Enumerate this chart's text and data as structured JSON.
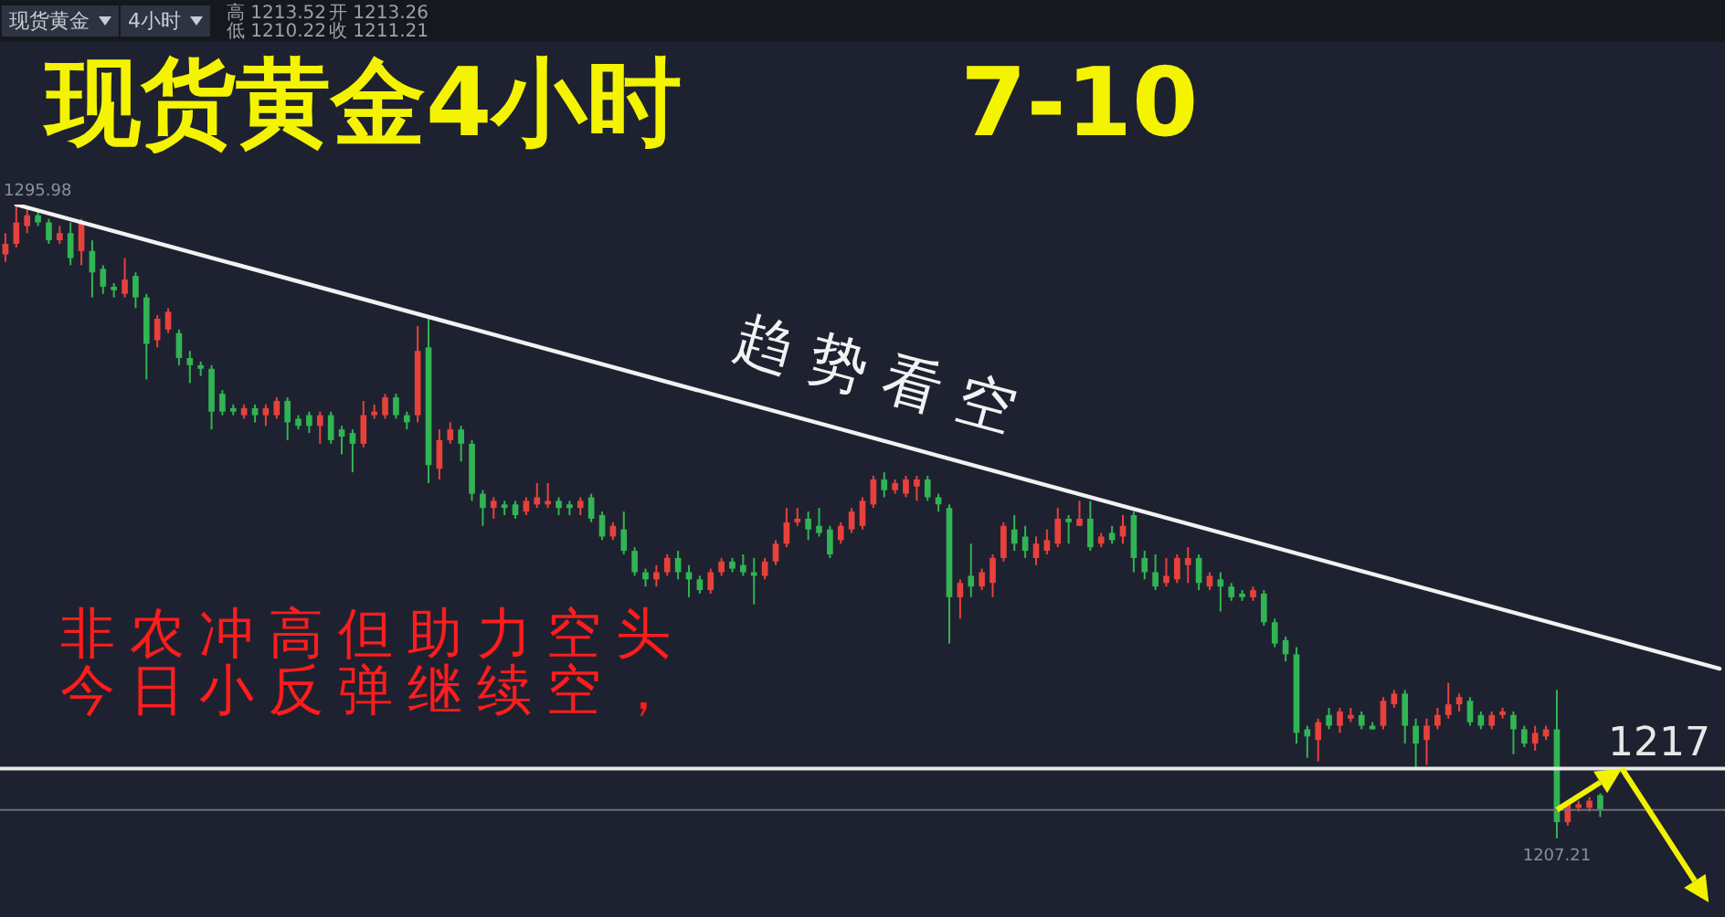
{
  "chart_data": {
    "type": "candlestick",
    "title": "现货黄金4小时    7-10",
    "tick_labels": false,
    "categories": [
      null,
      null,
      null,
      null,
      null,
      null,
      null,
      null,
      null,
      null,
      null,
      null,
      null,
      null,
      null,
      null,
      null,
      null,
      null,
      null,
      null,
      null,
      null,
      null,
      null,
      null,
      null,
      null,
      null,
      null,
      null,
      null,
      null,
      null,
      null,
      null,
      null,
      null,
      null,
      null,
      null,
      null,
      null,
      null,
      null,
      null,
      null,
      null,
      null,
      null,
      null,
      null,
      null,
      null,
      null,
      null,
      null,
      null,
      null,
      null,
      null,
      null,
      null,
      null,
      null,
      null,
      null,
      null,
      null,
      null,
      null,
      null,
      null,
      null,
      null,
      null,
      null,
      null,
      null,
      null,
      null,
      null,
      null,
      null,
      null,
      null,
      null,
      null,
      null,
      null,
      null,
      null,
      null,
      null,
      null,
      null,
      null,
      null,
      null,
      null,
      null,
      null,
      null,
      null,
      null,
      null,
      null,
      null,
      null,
      null,
      null,
      null,
      null,
      null,
      null,
      null,
      null,
      null,
      null,
      null,
      null,
      null,
      null,
      null,
      null,
      null,
      null,
      null,
      null,
      null,
      null,
      null,
      null,
      null,
      null,
      null,
      null,
      null,
      null,
      null,
      null,
      null,
      null,
      null,
      null,
      null,
      null,
      null,
      null,
      null,
      null,
      null,
      null,
      null,
      null,
      null,
      null,
      null,
      null
    ],
    "ohlc": [
      [
        1289,
        1292,
        1288,
        1290.5
      ],
      [
        1290.5,
        1295.98,
        1290,
        1293.5
      ],
      [
        1293,
        1295.5,
        1292,
        1294.5
      ],
      [
        1294.5,
        1295,
        1293,
        1293.5
      ],
      [
        1293.5,
        1294,
        1290.5,
        1291
      ],
      [
        1291,
        1293,
        1290.5,
        1292
      ],
      [
        1292,
        1293.5,
        1287.5,
        1288.5
      ],
      [
        1289.5,
        1294,
        1287.5,
        1293.5
      ],
      [
        1289.5,
        1291,
        1283,
        1286.5
      ],
      [
        1287,
        1287.5,
        1283.5,
        1284.5
      ],
      [
        1284.5,
        1285,
        1283,
        1284
      ],
      [
        1283.5,
        1288.5,
        1283,
        1285.5
      ],
      [
        1286,
        1286.5,
        1281.5,
        1283
      ],
      [
        1283,
        1283.5,
        1271.5,
        1276.5
      ],
      [
        1277,
        1280.5,
        1276,
        1280
      ],
      [
        1278.5,
        1281.5,
        1278,
        1281
      ],
      [
        1278,
        1278.5,
        1273.5,
        1274.5
      ],
      [
        1274.5,
        1275.5,
        1271,
        1273.5
      ],
      [
        1273.5,
        1274,
        1272,
        1273
      ],
      [
        1273,
        1273.5,
        1264.5,
        1267
      ],
      [
        1269.5,
        1270,
        1266.5,
        1267
      ],
      [
        1267.5,
        1268,
        1266.5,
        1267
      ],
      [
        1266.5,
        1268,
        1266,
        1267.5
      ],
      [
        1267.5,
        1268,
        1265.5,
        1266.5
      ],
      [
        1266.5,
        1268,
        1265,
        1267.5
      ],
      [
        1266.5,
        1269,
        1266,
        1268.5
      ],
      [
        1268.5,
        1269,
        1263,
        1265.5
      ],
      [
        1266,
        1266.5,
        1264.5,
        1265
      ],
      [
        1266.5,
        1267,
        1264,
        1265
      ],
      [
        1265,
        1267,
        1262.5,
        1266.5
      ],
      [
        1266.5,
        1267,
        1262.5,
        1263
      ],
      [
        1264.5,
        1265,
        1261,
        1263.5
      ],
      [
        1264,
        1264.5,
        1258.5,
        1262.5
      ],
      [
        1262.5,
        1268.5,
        1262,
        1266.5
      ],
      [
        1266.5,
        1268,
        1266,
        1267
      ],
      [
        1266.5,
        1269.5,
        1266,
        1269
      ],
      [
        1269,
        1269.5,
        1266,
        1266.5
      ],
      [
        1266.5,
        1267,
        1264.5,
        1265.5
      ],
      [
        1266.5,
        1279,
        1265.5,
        1275.5
      ],
      [
        1276,
        1280.5,
        1257,
        1259.5
      ],
      [
        1259,
        1264.5,
        1257.5,
        1263
      ],
      [
        1263,
        1265.5,
        1262.5,
        1264.5
      ],
      [
        1264.5,
        1265,
        1260,
        1262.5
      ],
      [
        1262.5,
        1263,
        1254.5,
        1255.5
      ],
      [
        1255.5,
        1256,
        1251,
        1253.5
      ],
      [
        1253.5,
        1255,
        1252,
        1254.5
      ],
      [
        1254,
        1254.5,
        1252.5,
        1253.5
      ],
      [
        1254,
        1254.5,
        1252,
        1252.5
      ],
      [
        1253,
        1255,
        1252.5,
        1254.5
      ],
      [
        1254,
        1257,
        1253.5,
        1255
      ],
      [
        1254,
        1257,
        1253.5,
        1254.5
      ],
      [
        1254.5,
        1255,
        1252.5,
        1253.5
      ],
      [
        1254,
        1254.5,
        1252.5,
        1253.5
      ],
      [
        1253.5,
        1255,
        1252.5,
        1254.5
      ],
      [
        1255,
        1255.5,
        1251.5,
        1252
      ],
      [
        1252.5,
        1253,
        1249,
        1249.5
      ],
      [
        1249.5,
        1251.5,
        1249,
        1251
      ],
      [
        1250.5,
        1253,
        1247,
        1247.5
      ],
      [
        1247.5,
        1248,
        1244,
        1244.5
      ],
      [
        1244.5,
        1245,
        1242.5,
        1243.5
      ],
      [
        1243.5,
        1245.5,
        1242.5,
        1244.5
      ],
      [
        1244.5,
        1247,
        1244,
        1246.5
      ],
      [
        1246.5,
        1247.5,
        1243.5,
        1244.5
      ],
      [
        1244.5,
        1245.5,
        1241,
        1243.5
      ],
      [
        1243.5,
        1244,
        1241.5,
        1242
      ],
      [
        1242,
        1245,
        1241.5,
        1244.5
      ],
      [
        1244.5,
        1246.5,
        1244,
        1246
      ],
      [
        1246,
        1246.5,
        1244.5,
        1245
      ],
      [
        1245.5,
        1247,
        1244,
        1244.5
      ],
      [
        1244.5,
        1246.5,
        1240,
        1244
      ],
      [
        1244,
        1246.5,
        1243.5,
        1246
      ],
      [
        1246,
        1249,
        1245.5,
        1248.5
      ],
      [
        1248.5,
        1253.5,
        1248,
        1251.5
      ],
      [
        1251.5,
        1253.5,
        1251,
        1252
      ],
      [
        1252,
        1253,
        1249,
        1250.5
      ],
      [
        1251,
        1253.5,
        1249.5,
        1250
      ],
      [
        1250.5,
        1251,
        1246.5,
        1247
      ],
      [
        1249,
        1251.5,
        1248.5,
        1251
      ],
      [
        1250.5,
        1253.5,
        1250,
        1253
      ],
      [
        1251,
        1255,
        1250.5,
        1254.5
      ],
      [
        1254,
        1258,
        1253.5,
        1257.5
      ],
      [
        1257.5,
        1258.5,
        1255,
        1256
      ],
      [
        1256,
        1257.5,
        1255.5,
        1257
      ],
      [
        1255.5,
        1258,
        1255,
        1257.5
      ],
      [
        1256.5,
        1258,
        1254.5,
        1257.5
      ],
      [
        1257.5,
        1258,
        1254.5,
        1255
      ],
      [
        1255,
        1255.5,
        1253,
        1254
      ],
      [
        1253.5,
        1254,
        1234.5,
        1241
      ],
      [
        1241,
        1243.5,
        1238,
        1243
      ],
      [
        1244,
        1248.5,
        1241,
        1242.5
      ],
      [
        1242.5,
        1245,
        1242,
        1244.5
      ],
      [
        1243,
        1247,
        1241,
        1246.5
      ],
      [
        1246.5,
        1251.5,
        1246,
        1251
      ],
      [
        1250.5,
        1252.5,
        1247.5,
        1248.5
      ],
      [
        1249.5,
        1251,
        1246.5,
        1247.5
      ],
      [
        1246.5,
        1249.5,
        1245.5,
        1248.5
      ],
      [
        1247.5,
        1250.5,
        1247,
        1249
      ],
      [
        1248.5,
        1253.5,
        1248,
        1252
      ],
      [
        1252,
        1252.5,
        1248.5,
        1251.5
      ],
      [
        1251,
        1254.5,
        1251,
        1252
      ],
      [
        1252,
        1254.5,
        1247.5,
        1248
      ],
      [
        1248.5,
        1250,
        1248,
        1249.5
      ],
      [
        1250,
        1251,
        1248.5,
        1249
      ],
      [
        1249.5,
        1252.5,
        1248.5,
        1251
      ],
      [
        1252.5,
        1253,
        1244.5,
        1246.5
      ],
      [
        1246.5,
        1247.5,
        1243.5,
        1244.5
      ],
      [
        1244.5,
        1247,
        1242,
        1242.5
      ],
      [
        1243,
        1246.5,
        1242.5,
        1244
      ],
      [
        1243.5,
        1247,
        1243,
        1246.5
      ],
      [
        1245.5,
        1248,
        1243,
        1246.5
      ],
      [
        1246.5,
        1247,
        1242,
        1243
      ],
      [
        1242.5,
        1244.5,
        1242,
        1244
      ],
      [
        1243.5,
        1244.5,
        1239,
        1242.5
      ],
      [
        1242.5,
        1243,
        1240.5,
        1241
      ],
      [
        1241.5,
        1242,
        1240.5,
        1241
      ],
      [
        1241,
        1242.5,
        1240.5,
        1242
      ],
      [
        1241.5,
        1242,
        1237,
        1237.5
      ],
      [
        1237.5,
        1238,
        1234,
        1234.5
      ],
      [
        1235,
        1235.5,
        1232,
        1233
      ],
      [
        1233,
        1234,
        1220.5,
        1222
      ],
      [
        1222.5,
        1223,
        1218.5,
        1221.5
      ],
      [
        1221,
        1224,
        1218,
        1223.5
      ],
      [
        1224.5,
        1225.5,
        1222.5,
        1223
      ],
      [
        1223,
        1225.5,
        1222,
        1225
      ],
      [
        1224,
        1225.5,
        1223.5,
        1224.5
      ],
      [
        1224.5,
        1225,
        1222.5,
        1223
      ],
      [
        1223,
        1223.5,
        1222.5,
        1222.5
      ],
      [
        1223,
        1227,
        1222.5,
        1226.5
      ],
      [
        1226,
        1228,
        1225.5,
        1227.5
      ],
      [
        1227.5,
        1228,
        1220.5,
        1223
      ],
      [
        1223,
        1224,
        1217,
        1220.5
      ],
      [
        1221,
        1224,
        1217.5,
        1223
      ],
      [
        1223,
        1225.5,
        1222.5,
        1224.5
      ],
      [
        1224.5,
        1229,
        1224,
        1226
      ],
      [
        1226,
        1227.5,
        1225,
        1227
      ],
      [
        1226.5,
        1227,
        1223,
        1223.5
      ],
      [
        1224.5,
        1225,
        1222.5,
        1223
      ],
      [
        1223,
        1225,
        1222.5,
        1224.5
      ],
      [
        1224.5,
        1225.5,
        1224,
        1225
      ],
      [
        1224.5,
        1225,
        1219,
        1222.5
      ],
      [
        1222.5,
        1223,
        1220,
        1220.5
      ],
      [
        1220.5,
        1223,
        1219.5,
        1222
      ],
      [
        1221.5,
        1223,
        1221,
        1222.5
      ],
      [
        1222.5,
        1228,
        1207.21,
        1209.5
      ],
      [
        1209.5,
        1212.5,
        1209,
        1212
      ],
      [
        1211.5,
        1212.5,
        1211,
        1212
      ],
      [
        1211.5,
        1213,
        1211,
        1212.5
      ],
      [
        1213.26,
        1213.52,
        1210.22,
        1211.21
      ],
      null,
      null,
      null,
      null,
      null,
      null,
      null,
      null,
      null,
      null,
      null
    ],
    "colors": [
      "#e8413c",
      "#e8413c",
      "#e8413c",
      "#31b453",
      "#31b453",
      "#e8413c",
      "#31b453",
      "#e8413c",
      "#31b453",
      "#31b453",
      "#31b453",
      "#e8413c",
      "#31b453",
      "#31b453",
      "#e8413c",
      "#e8413c",
      "#31b453",
      "#31b453",
      "#31b453",
      "#31b453",
      "#31b453",
      "#31b453",
      "#e8413c",
      "#31b453",
      "#e8413c",
      "#e8413c",
      "#31b453",
      "#31b453",
      "#31b453",
      "#e8413c",
      "#31b453",
      "#31b453",
      "#31b453",
      "#e8413c",
      "#e8413c",
      "#e8413c",
      "#31b453",
      "#31b453",
      "#e8413c",
      "#31b453",
      "#e8413c",
      "#e8413c",
      "#31b453",
      "#31b453",
      "#31b453",
      "#e8413c",
      "#31b453",
      "#31b453",
      "#e8413c",
      "#e8413c",
      "#e8413c",
      "#31b453",
      "#31b453",
      "#e8413c",
      "#31b453",
      "#31b453",
      "#e8413c",
      "#31b453",
      "#31b453",
      "#31b453",
      "#e8413c",
      "#e8413c",
      "#31b453",
      "#31b453",
      "#31b453",
      "#e8413c",
      "#e8413c",
      "#31b453",
      "#31b453",
      "#31b453",
      "#e8413c",
      "#e8413c",
      "#e8413c",
      "#e8413c",
      "#31b453",
      "#31b453",
      "#31b453",
      "#e8413c",
      "#e8413c",
      "#e8413c",
      "#e8413c",
      "#31b453",
      "#e8413c",
      "#e8413c",
      "#e8413c",
      "#31b453",
      "#31b453",
      "#31b453",
      "#e8413c",
      "#31b453",
      "#e8413c",
      "#e8413c",
      "#e8413c",
      "#31b453",
      "#31b453",
      "#e8413c",
      "#e8413c",
      "#e8413c",
      "#31b453",
      "#e8413c",
      "#31b453",
      "#e8413c",
      "#31b453",
      "#e8413c",
      "#31b453",
      "#31b453",
      "#31b453",
      "#e8413c",
      "#e8413c",
      "#e8413c",
      "#31b453",
      "#e8413c",
      "#31b453",
      "#31b453",
      "#31b453",
      "#e8413c",
      "#31b453",
      "#31b453",
      "#31b453",
      "#31b453",
      "#31b453",
      "#e8413c",
      "#31b453",
      "#e8413c",
      "#e8413c",
      "#31b453",
      "#31b453",
      "#e8413c",
      "#e8413c",
      "#31b453",
      "#31b453",
      "#e8413c",
      "#e8413c",
      "#e8413c",
      "#e8413c",
      "#31b453",
      "#31b453",
      "#e8413c",
      "#e8413c",
      "#31b453",
      "#31b453",
      "#e8413c",
      "#e8413c",
      "#31b453",
      "#e8413c",
      "#e8413c",
      "#e8413c",
      "#31b453",
      null,
      null,
      null,
      null,
      null,
      null,
      null,
      null,
      null,
      null,
      null
    ],
    "series": [
      {
        "type": "line",
        "name": "趋势看空",
        "color": "#f2f2f2",
        "values": [
          null,
          1296,
          null,
          null,
          null,
          null,
          null,
          null,
          null,
          null,
          null,
          null,
          null,
          null,
          null,
          null,
          null,
          null,
          null,
          null,
          null,
          null,
          null,
          null,
          null,
          null,
          null,
          null,
          null,
          null,
          null,
          null,
          null,
          null,
          null,
          null,
          null,
          null,
          null,
          null,
          null,
          null,
          null,
          null,
          null,
          null,
          null,
          null,
          null,
          null,
          null,
          null,
          null,
          null,
          null,
          null,
          null,
          null,
          null,
          null,
          null,
          null,
          null,
          null,
          null,
          null,
          null,
          null,
          null,
          null,
          null,
          null,
          null,
          null,
          null,
          null,
          null,
          null,
          null,
          null,
          null,
          null,
          null,
          null,
          null,
          null,
          null,
          null,
          null,
          null,
          null,
          null,
          null,
          null,
          null,
          null,
          null,
          null,
          null,
          null,
          null,
          null,
          null,
          null,
          null,
          null,
          null,
          null,
          null,
          null,
          null,
          null,
          null,
          null,
          null,
          null,
          null,
          null,
          null,
          null,
          null,
          null,
          null,
          null,
          null,
          null,
          null,
          null,
          null,
          null,
          null,
          null,
          null,
          null,
          null,
          null,
          null,
          null,
          null,
          null,
          null,
          null,
          null,
          null,
          null,
          null,
          null,
          null,
          null,
          null,
          null,
          null,
          null,
          null,
          null,
          null,
          null,
          null,
          1231
        ]
      }
    ],
    "ref_lines": [
      {
        "axis": "y",
        "value": 1217,
        "label": "1217",
        "color": "#e8e8e8"
      },
      {
        "axis": "y",
        "value": 1211.21,
        "color": "#6c717d"
      }
    ],
    "annotations": [
      "现货黄金",
      "4小时",
      "高 1213.52",
      "低 1210.22",
      "开 1213.26",
      "收 1211.21",
      "非农冲高但助力空头",
      "今日小反弹继续空，",
      {
        "text": "1295.98",
        "y": 1295.98
      },
      {
        "text": "1207.21",
        "y": 1207.21
      }
    ]
  }
}
